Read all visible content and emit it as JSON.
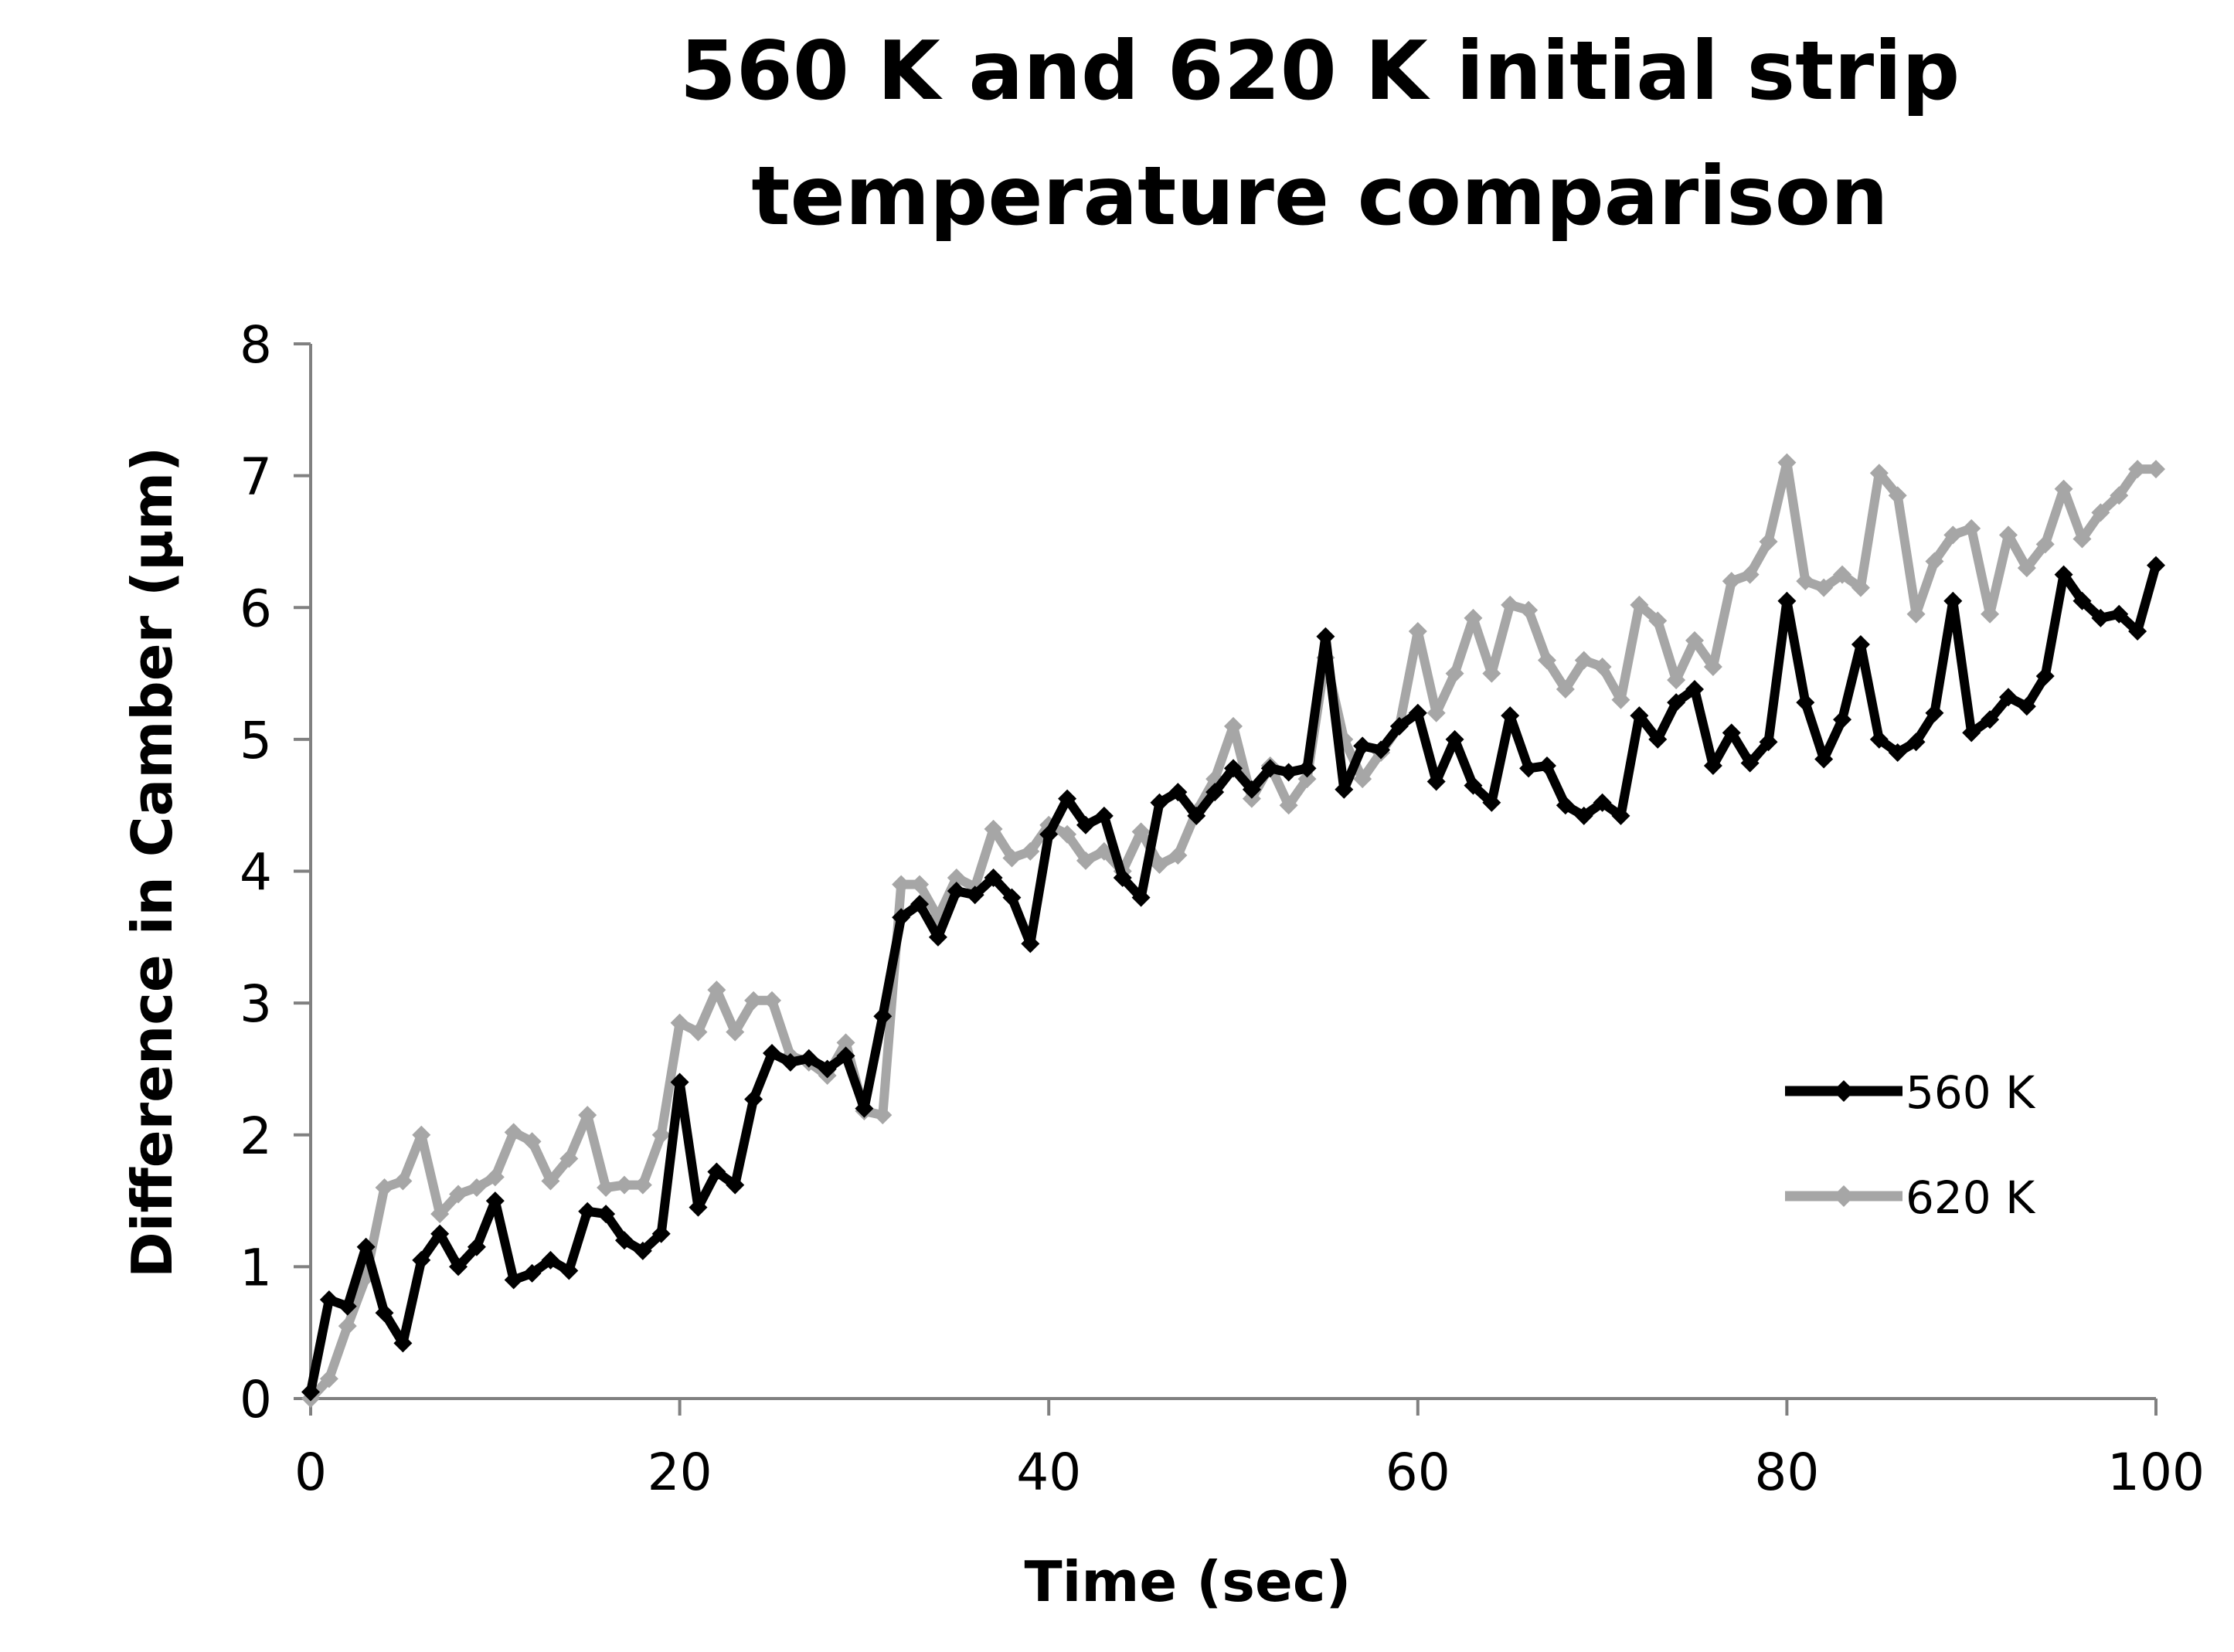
{
  "colors": {
    "s560": "#000000",
    "s620": "#a6a6a6",
    "axis": "#808080"
  },
  "chart_data": {
    "type": "line",
    "title_line1": "560 K and 620 K initial strip",
    "title_line2": "temperature comparison",
    "xlabel": "Time (sec)",
    "ylabel": "Difference in Camber (µm)",
    "xlim": [
      0,
      100
    ],
    "ylim": [
      0,
      8
    ],
    "xticks": [
      0,
      20,
      40,
      60,
      80,
      100
    ],
    "yticks": [
      0,
      1,
      2,
      3,
      4,
      5,
      6,
      7,
      8
    ],
    "xtick_labels": [
      "0",
      "20",
      "40",
      "60",
      "80",
      "100"
    ],
    "ytick_labels": [
      "0",
      "1",
      "2",
      "3",
      "4",
      "5",
      "6",
      "7",
      "8"
    ],
    "legend_position": "right",
    "grid": false,
    "series": [
      {
        "name": "560 K",
        "color": "#000000",
        "x": [
          0,
          1,
          2,
          3,
          4,
          5,
          6,
          7,
          8,
          9,
          10,
          11,
          12,
          13,
          14,
          15,
          16,
          17,
          18,
          19,
          20,
          21,
          22,
          23,
          24,
          25,
          26,
          27,
          28,
          29,
          30,
          31,
          32,
          33,
          34,
          35,
          36,
          37,
          38,
          39,
          40,
          41,
          42,
          43,
          44,
          45,
          46,
          47,
          48,
          49,
          50,
          51,
          52,
          53,
          54,
          55,
          56,
          57,
          58,
          59,
          60,
          61,
          62,
          63,
          64,
          65,
          66,
          67,
          68,
          69,
          70,
          71,
          72,
          73,
          74,
          75,
          76,
          77,
          78,
          79,
          80,
          81,
          82,
          83,
          84,
          85,
          86,
          87,
          88,
          89,
          90,
          91,
          92,
          93,
          94,
          95,
          96,
          97,
          98,
          99,
          100
        ],
        "values": [
          0.05,
          0.75,
          0.7,
          1.15,
          0.65,
          0.42,
          1.05,
          1.25,
          1.0,
          1.15,
          1.5,
          0.9,
          0.95,
          1.05,
          0.97,
          1.42,
          1.4,
          1.2,
          1.12,
          1.25,
          2.4,
          1.45,
          1.72,
          1.62,
          2.27,
          2.62,
          2.55,
          2.58,
          2.5,
          2.6,
          2.2,
          2.9,
          3.65,
          3.75,
          3.5,
          3.85,
          3.82,
          3.95,
          3.8,
          3.45,
          4.28,
          4.55,
          4.35,
          4.42,
          3.95,
          3.8,
          4.52,
          4.6,
          4.42,
          4.6,
          4.78,
          4.62,
          4.78,
          4.75,
          4.78,
          5.78,
          4.62,
          4.95,
          4.92,
          5.1,
          5.2,
          4.68,
          5.0,
          4.65,
          4.52,
          5.18,
          4.78,
          4.8,
          4.5,
          4.42,
          4.52,
          4.42,
          5.18,
          5.0,
          5.28,
          5.38,
          4.8,
          5.05,
          4.82,
          4.98,
          6.05,
          5.28,
          4.85,
          5.15,
          5.72,
          5.0,
          4.9,
          4.98,
          5.2,
          6.05,
          5.05,
          5.15,
          5.32,
          5.25,
          5.48,
          6.25,
          6.05,
          5.92,
          5.95,
          5.82,
          6.32
        ]
      },
      {
        "name": "620 K",
        "color": "#a6a6a6",
        "x": [
          0,
          1,
          2,
          3,
          4,
          5,
          6,
          7,
          8,
          9,
          10,
          11,
          12,
          13,
          14,
          15,
          16,
          17,
          18,
          19,
          20,
          21,
          22,
          23,
          24,
          25,
          26,
          27,
          28,
          29,
          30,
          31,
          32,
          33,
          34,
          35,
          36,
          37,
          38,
          39,
          40,
          41,
          42,
          43,
          44,
          45,
          46,
          47,
          48,
          49,
          50,
          51,
          52,
          53,
          54,
          55,
          56,
          57,
          58,
          59,
          60,
          61,
          62,
          63,
          64,
          65,
          66,
          67,
          68,
          69,
          70,
          71,
          72,
          73,
          74,
          75,
          76,
          77,
          78,
          79,
          80,
          81,
          82,
          83,
          84,
          85,
          86,
          87,
          88,
          89,
          90,
          91,
          92,
          93,
          94,
          95,
          96,
          97,
          98,
          99,
          100
        ],
        "values": [
          0.0,
          0.15,
          0.55,
          0.92,
          1.6,
          1.65,
          2.0,
          1.4,
          1.55,
          1.6,
          1.68,
          2.02,
          1.95,
          1.65,
          1.82,
          2.15,
          1.6,
          1.62,
          1.62,
          2.0,
          2.85,
          2.78,
          3.1,
          2.78,
          3.02,
          3.02,
          2.6,
          2.55,
          2.45,
          2.7,
          2.18,
          2.15,
          3.9,
          3.9,
          3.65,
          3.95,
          3.88,
          4.32,
          4.1,
          4.15,
          4.35,
          4.28,
          4.08,
          4.15,
          4.0,
          4.3,
          4.05,
          4.12,
          4.45,
          4.7,
          5.1,
          4.55,
          4.8,
          4.5,
          4.7,
          5.62,
          5.0,
          4.7,
          4.9,
          5.1,
          5.82,
          5.2,
          5.5,
          5.92,
          5.5,
          6.02,
          5.98,
          5.6,
          5.38,
          5.6,
          5.55,
          5.3,
          6.02,
          5.9,
          5.45,
          5.75,
          5.55,
          6.2,
          6.25,
          6.5,
          7.1,
          6.2,
          6.15,
          6.25,
          6.15,
          7.02,
          6.85,
          5.95,
          6.35,
          6.55,
          6.6,
          5.95,
          6.55,
          6.3,
          6.48,
          6.9,
          6.52,
          6.72,
          6.85,
          7.05,
          7.05
        ]
      }
    ]
  }
}
